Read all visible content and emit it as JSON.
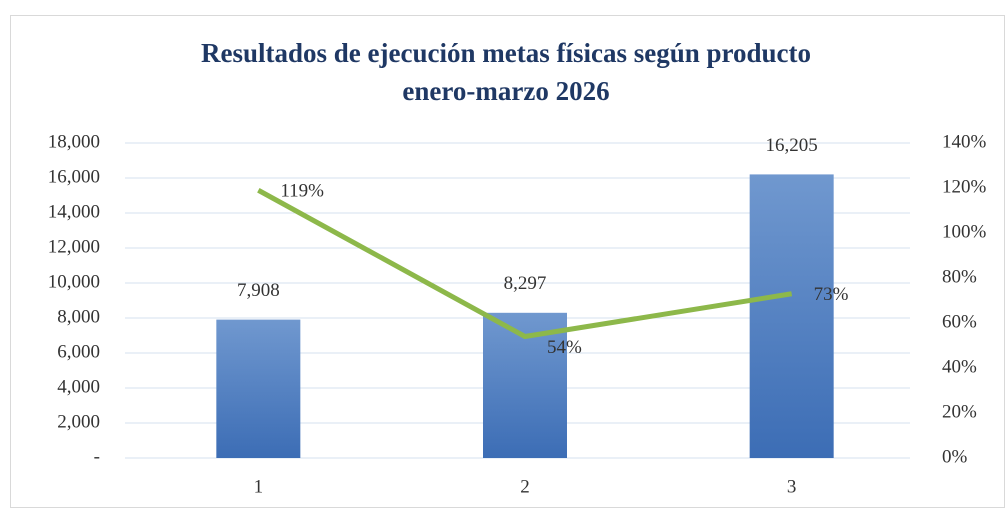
{
  "chart_data": {
    "type": "bar",
    "title": [
      "Resultados de ejecución metas físicas según producto",
      "enero-marzo 2026"
    ],
    "categories": [
      "1",
      "2",
      "3"
    ],
    "series": [
      {
        "type": "bar",
        "color": "#4a7cc0",
        "values": [
          7908,
          8297,
          16205
        ],
        "value_labels": [
          "7,908",
          "8,297",
          "16,205"
        ]
      },
      {
        "type": "line",
        "axis": "y2",
        "color": "#8db84a",
        "values": [
          119,
          54,
          73
        ],
        "value_labels": [
          "119%",
          "54%",
          "73%"
        ]
      }
    ],
    "ylim": [
      0,
      18000
    ],
    "yticks": [
      {
        "value": 0,
        "label": "-"
      },
      {
        "value": 2000,
        "label": "2,000"
      },
      {
        "value": 4000,
        "label": "4,000"
      },
      {
        "value": 6000,
        "label": "6,000"
      },
      {
        "value": 8000,
        "label": "8,000"
      },
      {
        "value": 10000,
        "label": "10,000"
      },
      {
        "value": 12000,
        "label": "12,000"
      },
      {
        "value": 14000,
        "label": "14,000"
      },
      {
        "value": 16000,
        "label": "16,000"
      },
      {
        "value": 18000,
        "label": "18,000"
      }
    ],
    "y2lim": [
      0,
      140
    ],
    "y2ticks": [
      {
        "value": 0,
        "label": "0%"
      },
      {
        "value": 20,
        "label": "20%"
      },
      {
        "value": 40,
        "label": "40%"
      },
      {
        "value": 60,
        "label": "60%"
      },
      {
        "value": 80,
        "label": "80%"
      },
      {
        "value": 100,
        "label": "100%"
      },
      {
        "value": 120,
        "label": "120%"
      },
      {
        "value": 140,
        "label": "140%"
      }
    ],
    "grid": true
  }
}
